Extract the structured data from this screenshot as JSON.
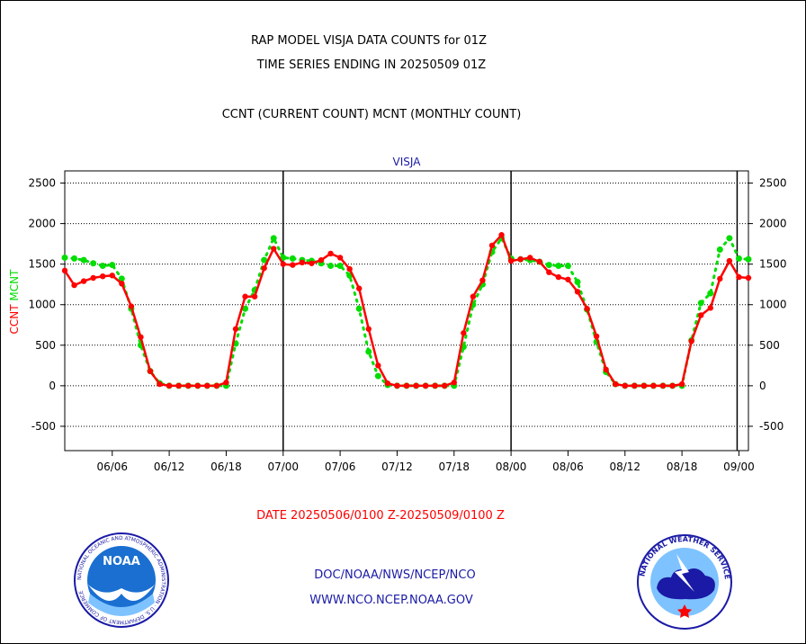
{
  "titles": {
    "line1": "RAP MODEL VISJA DATA COUNTS for 01Z",
    "line2": "TIME SERIES ENDING IN 20250509 01Z",
    "line3": "CCNT (CURRENT COUNT) MCNT (MONTHLY COUNT)"
  },
  "footer": {
    "date_range": "DATE 20250506/0100 Z-20250509/0100 Z",
    "link1": "DOC/NOAA/NWS/NCEP/NCO",
    "link2": "WWW.NCO.NCEP.NOAA.GOV"
  },
  "logos": {
    "left": "NOAA",
    "left_ring": "NATIONAL OCEANIC AND ATMOSPHERIC ADMINISTRATION · U.S. DEPARTMENT OF COMMERCE",
    "right_ring": "NATIONAL WEATHER SERVICE"
  },
  "colors": {
    "ccnt": "#ff0000",
    "mcnt": "#00dd00",
    "label_blue": "#1a1aa6"
  },
  "chart_data": {
    "type": "line",
    "title": "VISJA",
    "ylabel_parts": [
      "CCNT",
      "MCNT"
    ],
    "ylim": [
      -800,
      2650
    ],
    "yticks": [
      -500,
      0,
      500,
      1000,
      1500,
      2000,
      2500
    ],
    "x_tick_labels": [
      "06/06",
      "06/12",
      "06/18",
      "07/00",
      "07/06",
      "07/12",
      "07/18",
      "08/00",
      "08/06",
      "08/12",
      "08/18",
      "09/00"
    ],
    "x_tick_hours": [
      5,
      11,
      17,
      23,
      29,
      35,
      41,
      47,
      53,
      59,
      65,
      71
    ],
    "day_boundaries_hours": [
      23,
      47,
      71
    ],
    "x_range_hours": [
      0,
      72
    ],
    "grid": true,
    "series": [
      {
        "name": "CCNT",
        "color": "#ff0000",
        "x": [
          0,
          1,
          2,
          3,
          4,
          5,
          6,
          7,
          8,
          9,
          10,
          11,
          12,
          13,
          14,
          15,
          16,
          17,
          18,
          19,
          20,
          21,
          22,
          23,
          24,
          25,
          26,
          27,
          28,
          29,
          30,
          31,
          32,
          33,
          34,
          35,
          36,
          37,
          38,
          39,
          40,
          41,
          42,
          43,
          44,
          45,
          46,
          47,
          48,
          49,
          50,
          51,
          52,
          53,
          54,
          55,
          56,
          57,
          58,
          59,
          60,
          61,
          62,
          63,
          64,
          65,
          66,
          67,
          68,
          69,
          70,
          71,
          72
        ],
        "values": [
          1420,
          1240,
          1290,
          1330,
          1350,
          1360,
          1260,
          980,
          600,
          180,
          20,
          0,
          0,
          0,
          0,
          0,
          0,
          40,
          700,
          1100,
          1100,
          1450,
          1690,
          1500,
          1490,
          1520,
          1510,
          1550,
          1630,
          1580,
          1440,
          1200,
          700,
          250,
          30,
          0,
          0,
          0,
          0,
          0,
          0,
          40,
          650,
          1100,
          1300,
          1730,
          1860,
          1540,
          1560,
          1580,
          1530,
          1400,
          1340,
          1310,
          1160,
          950,
          610,
          200,
          20,
          0,
          0,
          0,
          0,
          0,
          0,
          20,
          550,
          870,
          960,
          1320,
          1540,
          1340,
          1330
        ]
      },
      {
        "name": "MCNT",
        "color": "#00dd00",
        "x": [
          0,
          1,
          2,
          3,
          4,
          5,
          6,
          7,
          8,
          9,
          10,
          11,
          12,
          13,
          14,
          15,
          16,
          17,
          18,
          19,
          20,
          21,
          22,
          23,
          24,
          25,
          26,
          27,
          28,
          29,
          30,
          31,
          32,
          33,
          34,
          35,
          36,
          37,
          38,
          39,
          40,
          41,
          42,
          43,
          44,
          45,
          46,
          47,
          48,
          49,
          50,
          51,
          52,
          53,
          54,
          55,
          56,
          57,
          58,
          59,
          60,
          61,
          62,
          63,
          64,
          65,
          66,
          67,
          68,
          69,
          70,
          71,
          72
        ],
        "values": [
          1580,
          1570,
          1550,
          1510,
          1480,
          1490,
          1320,
          950,
          500,
          180,
          30,
          0,
          0,
          0,
          0,
          0,
          0,
          0,
          520,
          950,
          1180,
          1550,
          1820,
          1580,
          1570,
          1550,
          1540,
          1510,
          1480,
          1480,
          1360,
          950,
          420,
          120,
          10,
          0,
          0,
          0,
          0,
          0,
          0,
          0,
          480,
          1000,
          1250,
          1650,
          1820,
          1570,
          1560,
          1550,
          1530,
          1490,
          1480,
          1480,
          1280,
          940,
          540,
          170,
          20,
          0,
          0,
          0,
          0,
          0,
          0,
          0,
          560,
          1020,
          1140,
          1680,
          1820,
          1570,
          1560
        ]
      }
    ]
  }
}
